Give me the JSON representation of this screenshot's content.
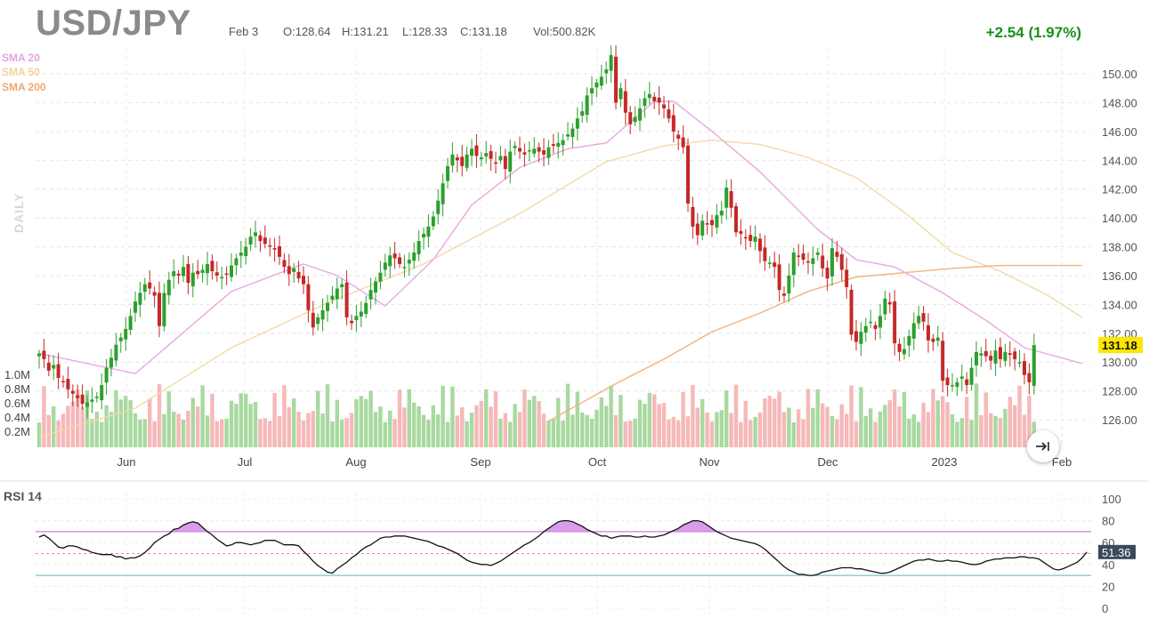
{
  "header": {
    "symbol": "USD/JPY",
    "date": "Feb 3",
    "open": "O:128.64",
    "high": "H:131.21",
    "low": "L:128.33",
    "close": "C:131.18",
    "volume": "Vol:500.82K",
    "change": "+2.54 (1.97%)",
    "period": "DAILY"
  },
  "legend": [
    {
      "label": "SMA 20",
      "color": "#e9a8e1"
    },
    {
      "label": "SMA 50",
      "color": "#f3d9a8"
    },
    {
      "label": "SMA 200",
      "color": "#f2b27d"
    }
  ],
  "colors": {
    "up": "#2ca02c",
    "down": "#c62828",
    "vol_up": "#a8d9a0",
    "vol_down": "#f6b8b8",
    "rsi_line": "#111111",
    "rsi_upper": "#c77fd6",
    "rsi_mid": "#ef8a8a",
    "rsi_lower": "#76c6cc",
    "rsi_fill": "#d48be6"
  },
  "chart_data": {
    "type": "candlestick",
    "title": "USD/JPY",
    "x_tick_labels": [
      "Jun",
      "Jul",
      "Aug",
      "Sep",
      "Oct",
      "Nov",
      "Dec",
      "2023",
      "Feb"
    ],
    "price_axis": {
      "ticks": [
        "126.00",
        "128.00",
        "130.00",
        "132.00",
        "134.00",
        "136.00",
        "138.00",
        "140.00",
        "142.00",
        "144.00",
        "146.00",
        "148.00",
        "150.00"
      ],
      "range": [
        124.5,
        152
      ]
    },
    "volume_axis": {
      "ticks": [
        "0.2M",
        "0.4M",
        "0.6M",
        "0.8M",
        "1.0M"
      ]
    },
    "last_price": "131.18",
    "closes": [
      130.6,
      130.2,
      129.4,
      129.8,
      128.9,
      128.6,
      128.1,
      127.8,
      127.5,
      127.1,
      127.2,
      127.4,
      127.6,
      128.4,
      129.6,
      130.3,
      131.2,
      131.7,
      132.3,
      133.2,
      134.2,
      134.8,
      135.4,
      135.1,
      134.6,
      132.5,
      134.8,
      135.7,
      136.3,
      136.0,
      136.6,
      135.5,
      136.2,
      136.1,
      136.4,
      136.8,
      136.3,
      136.0,
      135.9,
      136.1,
      136.7,
      137.2,
      137.6,
      138.0,
      138.7,
      139.0,
      138.4,
      138.2,
      138.0,
      137.8,
      137.3,
      136.6,
      136.1,
      136.5,
      135.8,
      135.4,
      133.6,
      132.4,
      133.1,
      133.6,
      134.1,
      134.6,
      135.1,
      135.4,
      133.1,
      132.7,
      133.2,
      133.5,
      134.1,
      135.0,
      135.6,
      136.2,
      136.9,
      137.4,
      137.2,
      136.8,
      136.6,
      137.1,
      137.6,
      138.4,
      138.9,
      139.4,
      140.1,
      141.2,
      142.4,
      143.6,
      144.4,
      144.0,
      143.6,
      144.4,
      144.8,
      144.3,
      144.2,
      144.5,
      144.1,
      143.8,
      144.3,
      143.4,
      144.6,
      145.0,
      144.6,
      144.4,
      144.7,
      144.8,
      144.6,
      144.4,
      144.9,
      145.0,
      145.2,
      145.4,
      145.8,
      146.2,
      146.9,
      147.4,
      148.5,
      149.0,
      149.4,
      149.8,
      150.3,
      151.3,
      148.0,
      149.0,
      147.3,
      146.5,
      147.0,
      147.6,
      148.3,
      148.6,
      148.1,
      148.0,
      147.6,
      146.9,
      146.0,
      145.5,
      144.9,
      141.0,
      139.4,
      138.8,
      139.8,
      139.6,
      139.5,
      140.2,
      140.5,
      142.1,
      140.7,
      139.0,
      138.9,
      138.6,
      138.4,
      138.7,
      137.7,
      137.0,
      136.9,
      136.6,
      135.0,
      134.6,
      136.0,
      137.6,
      137.3,
      137.1,
      136.9,
      137.2,
      137.6,
      136.5,
      135.8,
      137.9,
      137.3,
      136.4,
      135.2,
      131.9,
      131.4,
      132.1,
      132.5,
      132.8,
      132.3,
      133.2,
      134.4,
      134.0,
      131.3,
      130.7,
      130.9,
      131.8,
      132.7,
      133.2,
      132.8,
      131.5,
      131.4,
      131.7,
      128.7,
      128.4,
      128.4,
      128.6,
      129.0,
      128.4,
      129.6,
      130.7,
      130.6,
      130.4,
      130.1,
      130.8,
      130.2,
      130.7,
      130.5,
      130.2,
      130.0,
      129.1,
      128.6,
      131.18
    ],
    "sma20": [
      [
        0,
        130.6
      ],
      [
        20,
        129.2
      ],
      [
        40,
        134.9
      ],
      [
        55,
        136.8
      ],
      [
        62,
        136.0
      ],
      [
        72,
        133.9
      ],
      [
        82,
        137.1
      ],
      [
        90,
        140.9
      ],
      [
        100,
        143.5
      ],
      [
        110,
        144.8
      ],
      [
        118,
        145.2
      ],
      [
        128,
        148.1
      ],
      [
        132,
        148.1
      ],
      [
        140,
        146.0
      ],
      [
        150,
        143.2
      ],
      [
        162,
        139.2
      ],
      [
        170,
        137.1
      ],
      [
        178,
        136.6
      ],
      [
        188,
        134.8
      ],
      [
        197,
        132.9
      ],
      [
        205,
        131.0
      ],
      [
        217,
        129.9
      ]
    ],
    "sma50": [
      [
        0,
        124.8
      ],
      [
        20,
        126.8
      ],
      [
        40,
        131.0
      ],
      [
        60,
        134.1
      ],
      [
        80,
        136.8
      ],
      [
        100,
        140.3
      ],
      [
        118,
        143.9
      ],
      [
        130,
        145.0
      ],
      [
        140,
        145.4
      ],
      [
        150,
        145.1
      ],
      [
        160,
        144.2
      ],
      [
        170,
        142.8
      ],
      [
        180,
        140.4
      ],
      [
        190,
        137.6
      ],
      [
        200,
        136.3
      ],
      [
        210,
        134.6
      ],
      [
        217,
        133.1
      ]
    ],
    "sma200": [
      [
        106,
        125.9
      ],
      [
        120,
        128.5
      ],
      [
        130,
        130.2
      ],
      [
        140,
        132.1
      ],
      [
        150,
        133.4
      ],
      [
        160,
        134.9
      ],
      [
        170,
        135.9
      ],
      [
        180,
        136.2
      ],
      [
        190,
        136.5
      ],
      [
        200,
        136.7
      ],
      [
        210,
        136.7
      ],
      [
        217,
        136.7
      ]
    ],
    "rsi": {
      "title": "RSI 14",
      "ticks": [
        "0",
        "20",
        "40",
        "60",
        "80",
        "100"
      ],
      "levels": {
        "overbought": 70,
        "mid": 50,
        "oversold": 30
      },
      "last_value": "51.36",
      "values": [
        65,
        67,
        64,
        60,
        56,
        55,
        57,
        57,
        56,
        54,
        53,
        51,
        50,
        49,
        49,
        49,
        47,
        47,
        45,
        46,
        46,
        48,
        51,
        55,
        60,
        63,
        66,
        68,
        72,
        73,
        76,
        78,
        79,
        78,
        74,
        70,
        67,
        63,
        60,
        57,
        58,
        60,
        60,
        59,
        58,
        59,
        60,
        62,
        62,
        62,
        60,
        58,
        58,
        58,
        57,
        52,
        48,
        43,
        39,
        36,
        33,
        32,
        36,
        39,
        42,
        46,
        49,
        53,
        56,
        58,
        61,
        64,
        65,
        65,
        66,
        66,
        66,
        65,
        64,
        63,
        62,
        61,
        59,
        57,
        56,
        54,
        52,
        50,
        47,
        44,
        42,
        41,
        40,
        40,
        39,
        41,
        43,
        46,
        49,
        52,
        55,
        58,
        60,
        63,
        66,
        70,
        73,
        76,
        79,
        80,
        80,
        79,
        77,
        75,
        72,
        70,
        68,
        66,
        66,
        64,
        65,
        66,
        66,
        66,
        65,
        65,
        66,
        65,
        65,
        66,
        67,
        69,
        71,
        73,
        76,
        78,
        80,
        80,
        79,
        76,
        73,
        70,
        68,
        66,
        64,
        63,
        62,
        61,
        60,
        59,
        57,
        54,
        50,
        46,
        42,
        38,
        35,
        33,
        31,
        31,
        30,
        30,
        31,
        33,
        34,
        35,
        36,
        37,
        37,
        37,
        36,
        36,
        35,
        34,
        33,
        32,
        32,
        33,
        35,
        37,
        39,
        41,
        43,
        44,
        44,
        45,
        44,
        43,
        43,
        44,
        43,
        43,
        42,
        41,
        40,
        40,
        41,
        43,
        44,
        45,
        45,
        46,
        46,
        46,
        47,
        47,
        46,
        46,
        45,
        42,
        39,
        36,
        35,
        36,
        38,
        40,
        42,
        46,
        51.36
      ]
    }
  }
}
